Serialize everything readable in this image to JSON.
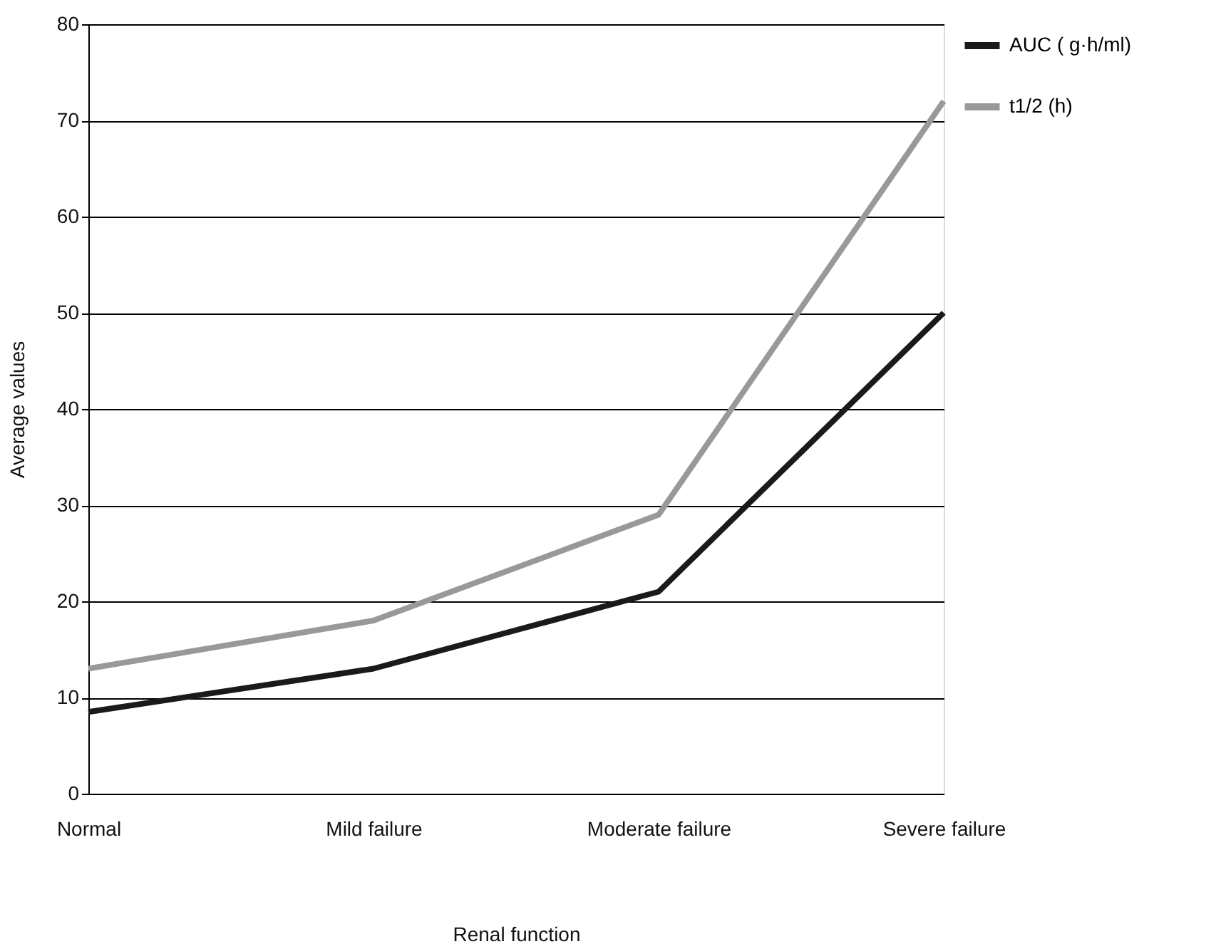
{
  "chart_data": {
    "type": "line",
    "xlabel": "Renal function",
    "ylabel": "Average values",
    "categories": [
      "Normal",
      "Mild failure",
      "Moderate failure",
      "Severe failure"
    ],
    "series": [
      {
        "name": "AUC (  g·h/ml)",
        "color": "#1a1a1a",
        "values": [
          8.5,
          13,
          21,
          50
        ]
      },
      {
        "name": "t1/2 (h)",
        "color": "#999999",
        "values": [
          13,
          18,
          29,
          72
        ]
      }
    ],
    "ylim": [
      0,
      80
    ],
    "yticks": [
      0,
      10,
      20,
      30,
      40,
      50,
      60,
      70,
      80
    ],
    "grid": "y",
    "legend": "right",
    "marker": "none",
    "line_style": "solid"
  }
}
